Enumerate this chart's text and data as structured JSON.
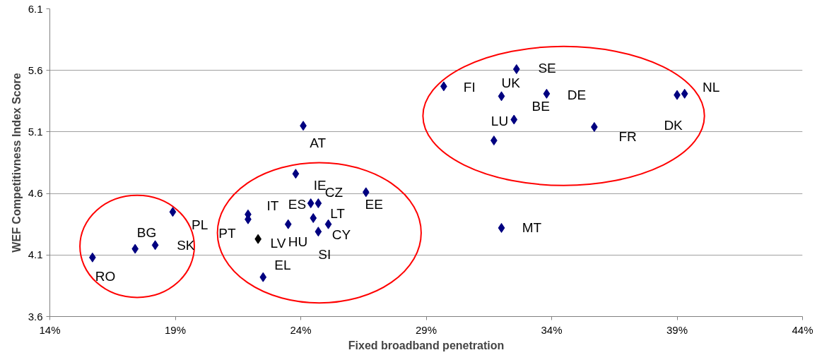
{
  "chart_data": {
    "type": "scatter",
    "xlabel": "Fixed broadband penetration",
    "ylabel": "WEF Competitivness Index Score",
    "marker": "diamond",
    "grid": "y",
    "xlim": [
      14,
      44
    ],
    "xticks": [
      {
        "value": 14,
        "label": "14%"
      },
      {
        "value": 19,
        "label": "19%"
      },
      {
        "value": 24,
        "label": "24%"
      },
      {
        "value": 29,
        "label": "29%"
      },
      {
        "value": 34,
        "label": "34%"
      },
      {
        "value": 39,
        "label": "39%"
      },
      {
        "value": 44,
        "label": "44%"
      }
    ],
    "ylim": [
      3.6,
      6.1
    ],
    "yticks": [
      3.6,
      4.1,
      4.6,
      5.1,
      5.6,
      6.1
    ],
    "x": [
      15.7,
      17.4,
      18.2,
      18.9,
      21.9,
      21.9,
      22.3,
      22.5,
      23.5,
      23.8,
      24.1,
      24.4,
      24.7,
      24.5,
      24.7,
      25.1,
      26.6,
      29.7,
      31.7,
      32.0,
      32.0,
      32.5,
      32.6,
      33.8,
      35.7,
      39.0,
      39.3
    ],
    "values": [
      4.08,
      4.15,
      4.18,
      4.45,
      4.43,
      4.39,
      4.23,
      3.92,
      4.35,
      4.76,
      5.15,
      4.52,
      4.52,
      4.4,
      4.29,
      4.35,
      4.61,
      5.47,
      5.03,
      4.32,
      5.39,
      5.2,
      5.61,
      5.41,
      5.14,
      5.4,
      5.41
    ],
    "colors": [
      "#000080",
      "#000080",
      "#000080",
      "#000080",
      "#000080",
      "#000080",
      "#000000",
      "#000080",
      "#000080",
      "#000080",
      "#000080",
      "#000080",
      "#000080",
      "#000080",
      "#000080",
      "#000080",
      "#000080",
      "#000080",
      "#000080",
      "#000080",
      "#000080",
      "#000080",
      "#000080",
      "#000080",
      "#000080",
      "#000080",
      "#000080"
    ],
    "annotations": [
      {
        "text": "RO",
        "x": 15.7,
        "y": 4.08
      },
      {
        "text": "BG",
        "x": 17.4,
        "y": 4.15
      },
      {
        "text": "SK",
        "x": 18.2,
        "y": 4.18
      },
      {
        "text": "PL",
        "x": 18.9,
        "y": 4.45
      },
      {
        "text": "IT",
        "x": 21.9,
        "y": 4.43
      },
      {
        "text": "PT",
        "x": 22.3,
        "y": 4.23
      },
      {
        "text": "EL",
        "x": 22.5,
        "y": 3.92
      },
      {
        "text": "LV",
        "x": 23.5,
        "y": 4.35
      },
      {
        "text": "HU",
        "x": 24.7,
        "y": 4.29
      },
      {
        "text": "SI",
        "x": 24.7,
        "y": 4.29
      },
      {
        "text": "CY",
        "x": 25.1,
        "y": 4.35
      },
      {
        "text": "LT",
        "x": 24.5,
        "y": 4.4
      },
      {
        "text": "ES",
        "x": 24.4,
        "y": 4.52
      },
      {
        "text": "CZ",
        "x": 24.7,
        "y": 4.52
      },
      {
        "text": "IE",
        "x": 23.8,
        "y": 4.76
      },
      {
        "text": "EE",
        "x": 26.6,
        "y": 4.61
      },
      {
        "text": "AT",
        "x": 24.1,
        "y": 5.15
      },
      {
        "text": "FI",
        "x": 29.7,
        "y": 5.47
      },
      {
        "text": "UK",
        "x": 32.0,
        "y": 5.39
      },
      {
        "text": "SE",
        "x": 32.6,
        "y": 5.61
      },
      {
        "text": "DE",
        "x": 33.8,
        "y": 5.41
      },
      {
        "text": "BE",
        "x": 32.5,
        "y": 5.2
      },
      {
        "text": "LU",
        "x": 31.7,
        "y": 5.03
      },
      {
        "text": "FR",
        "x": 35.7,
        "y": 5.14
      },
      {
        "text": "DK",
        "x": 39.0,
        "y": 5.4
      },
      {
        "text": "NL",
        "x": 39.3,
        "y": 5.41
      },
      {
        "text": "MT",
        "x": 32.0,
        "y": 4.32
      }
    ]
  }
}
